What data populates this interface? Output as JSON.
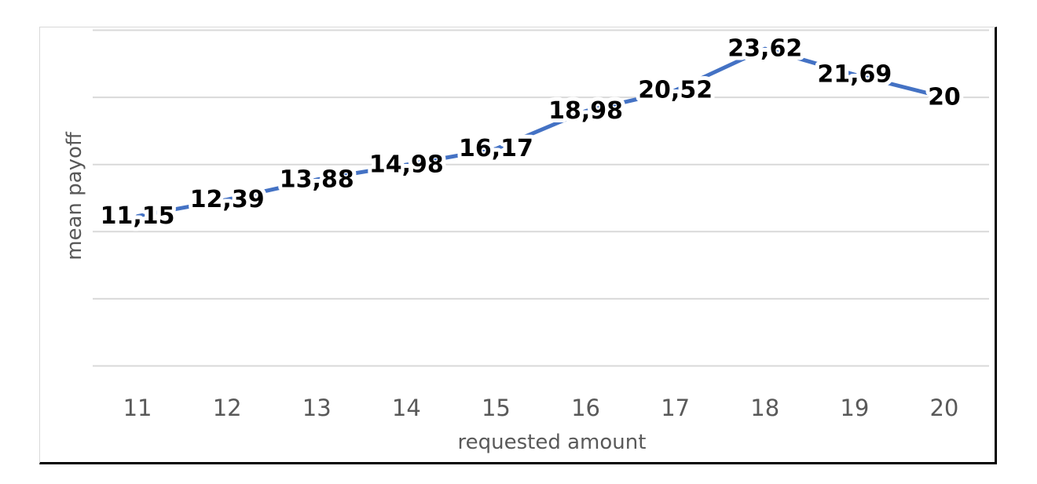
{
  "chart_data": {
    "type": "line",
    "title": "",
    "xlabel": "requested amount",
    "ylabel": "mean payoff",
    "categories": [
      "11",
      "12",
      "13",
      "14",
      "15",
      "16",
      "17",
      "18",
      "19",
      "20"
    ],
    "series": [
      {
        "values": [
          11.15,
          12.39,
          13.88,
          14.98,
          16.17,
          18.98,
          20.52,
          23.62,
          21.69,
          20
        ],
        "data_labels": [
          "11,15",
          "12,39",
          "13,88",
          "14,98",
          "16,17",
          "18,98",
          "20,52",
          "23,62",
          "21,69",
          "20"
        ],
        "color": "#4472c4"
      }
    ],
    "ylim": [
      0,
      25
    ],
    "y_gridlines": [
      0,
      5,
      10,
      15,
      20,
      25
    ],
    "y_tick_labels_shown": false,
    "grid": true,
    "legend": "none"
  }
}
